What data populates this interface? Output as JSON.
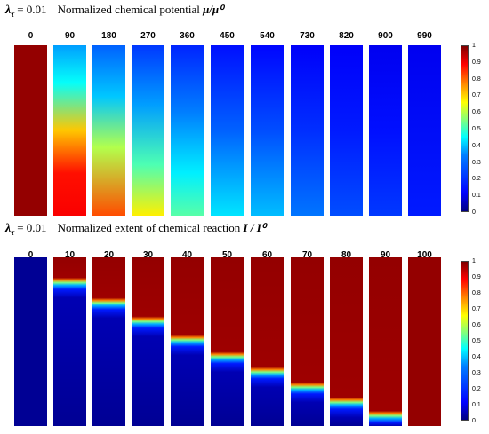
{
  "panels": [
    {
      "lambda_symbol": "λ",
      "lambda_sub": "τ",
      "lambda_value": "= 0.01",
      "title": "Normalized chemical potential",
      "symbol": "μ/μ⁰",
      "columns": [
        "0",
        "90",
        "180",
        "270",
        "360",
        "450",
        "540",
        "730",
        "820",
        "900",
        "990"
      ],
      "colorbar": {
        "range": [
          0,
          1
        ],
        "ticks": [
          "1",
          "0.9",
          "0.8",
          "0.7",
          "0.6",
          "0.5",
          "0.4",
          "0.3",
          "0.2",
          "0.1",
          "0"
        ]
      }
    },
    {
      "lambda_symbol": "λ",
      "lambda_sub": "τ",
      "lambda_value": "= 0.01",
      "title": "Normalized extent of chemical reaction",
      "symbol": "I / I⁰",
      "columns": [
        "0",
        "10",
        "20",
        "30",
        "40",
        "50",
        "60",
        "70",
        "80",
        "90",
        "100"
      ],
      "colorbar": {
        "range": [
          0,
          1
        ],
        "ticks": [
          "1",
          "0.9",
          "0.8",
          "0.7",
          "0.6",
          "0.5",
          "0.4",
          "0.3",
          "0.2",
          "0.1",
          "0"
        ]
      }
    }
  ],
  "colormap": "jet",
  "colors": {
    "dark_red": "#7f0000",
    "dark_blue": "#00007f"
  }
}
